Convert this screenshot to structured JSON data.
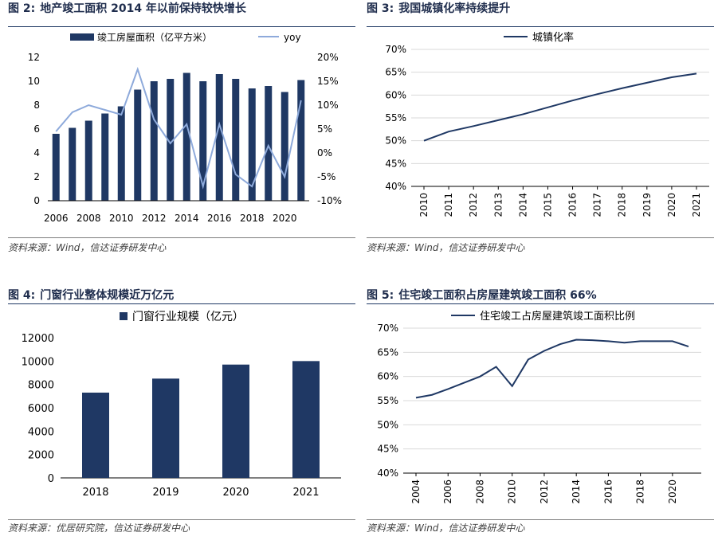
{
  "colors": {
    "navy": "#1f3864",
    "lightblue": "#8eaadb",
    "grid": "#d9d9d9",
    "axis": "#7f7f7f"
  },
  "panels": [
    {
      "fig": "图 2:",
      "title": "地产竣工面积 2014 年以前保持较快增长",
      "source": "资料来源：Wind，信达证券研发中心"
    },
    {
      "fig": "图 3:",
      "title": "我国城镇化率持续提升",
      "source": "资料来源：Wind，信达证券研发中心"
    },
    {
      "fig": "图 4:",
      "title": "门窗行业整体规模近万亿元",
      "source": "资料来源：优居研究院，信达证券研发中心"
    },
    {
      "fig": "图 5:",
      "title": "住宅竣工面积占房屋建筑竣工面积 66%",
      "source": "资料来源：Wind，信达证券研发中心"
    }
  ],
  "chart_data": [
    {
      "type": "bar+line",
      "title": "地产竣工面积 2014 年以前保持较快增长",
      "years": [
        2006,
        2007,
        2008,
        2009,
        2010,
        2011,
        2012,
        2013,
        2014,
        2015,
        2016,
        2017,
        2018,
        2019,
        2020,
        2021
      ],
      "x_tick_labels": [
        "2006",
        "2008",
        "2010",
        "2012",
        "2014",
        "2016",
        "2018",
        "2020"
      ],
      "series": [
        {
          "name": "竣工房屋面积（亿平方米）",
          "axis": "left",
          "values": [
            5.6,
            6.1,
            6.7,
            7.3,
            7.9,
            9.3,
            10.0,
            10.2,
            10.7,
            10.0,
            10.6,
            10.2,
            9.4,
            9.6,
            9.1,
            10.1
          ]
        },
        {
          "name": "yoy",
          "axis": "right",
          "values": [
            4.5,
            8.5,
            10,
            9,
            8,
            17.5,
            7,
            2,
            6,
            -7,
            6,
            -4.5,
            -7,
            1.5,
            -5,
            11
          ]
        }
      ],
      "y_left": {
        "ylim": [
          0,
          12
        ],
        "ticks": [
          "0",
          "2",
          "4",
          "6",
          "8",
          "10",
          "12"
        ]
      },
      "y_right": {
        "ylim": [
          -10,
          20
        ],
        "ticks": [
          "-10%",
          "-5%",
          "0%",
          "5%",
          "10%",
          "15%",
          "20%"
        ]
      },
      "legend": "top"
    },
    {
      "type": "line",
      "title": "我国城镇化率持续提升",
      "x": [
        "2010",
        "2011",
        "2012",
        "2013",
        "2014",
        "2015",
        "2016",
        "2017",
        "2018",
        "2019",
        "2020",
        "2021"
      ],
      "series": [
        {
          "name": "城镇化率",
          "values": [
            50,
            52,
            53.2,
            54.5,
            55.8,
            57.3,
            58.8,
            60.2,
            61.5,
            62.7,
            63.9,
            64.7
          ]
        }
      ],
      "ylim": [
        40,
        70
      ],
      "y_ticks": [
        "40%",
        "45%",
        "50%",
        "55%",
        "60%",
        "65%",
        "70%"
      ],
      "legend": "top"
    },
    {
      "type": "bar",
      "title": "门窗行业整体规模近万亿元",
      "categories": [
        "2018",
        "2019",
        "2020",
        "2021"
      ],
      "series": [
        {
          "name": "门窗行业规模（亿元）",
          "values": [
            7300,
            8500,
            9700,
            10000
          ]
        }
      ],
      "ylim": [
        0,
        12000
      ],
      "y_ticks": [
        "0",
        "2000",
        "4000",
        "6000",
        "8000",
        "10000",
        "12000"
      ],
      "legend": "top"
    },
    {
      "type": "line",
      "title": "住宅竣工面积占房屋建筑竣工面积 66%",
      "x": [
        2004,
        2005,
        2006,
        2007,
        2008,
        2009,
        2010,
        2011,
        2012,
        2013,
        2014,
        2015,
        2016,
        2017,
        2018,
        2019,
        2020,
        2021
      ],
      "x_tick_labels": [
        "2004",
        "2006",
        "2008",
        "2010",
        "2012",
        "2014",
        "2016",
        "2018",
        "2020"
      ],
      "series": [
        {
          "name": "住宅竣工占房屋建筑竣工面积比例",
          "values": [
            55.6,
            56.2,
            57.4,
            58.7,
            60,
            62,
            58,
            63.5,
            65.3,
            66.7,
            67.6,
            67.5,
            67.3,
            67,
            67.3,
            67.3,
            67.3,
            66.2
          ]
        }
      ],
      "ylim": [
        40,
        70
      ],
      "y_ticks": [
        "40%",
        "45%",
        "50%",
        "55%",
        "60%",
        "65%",
        "70%"
      ],
      "legend": "top"
    }
  ]
}
